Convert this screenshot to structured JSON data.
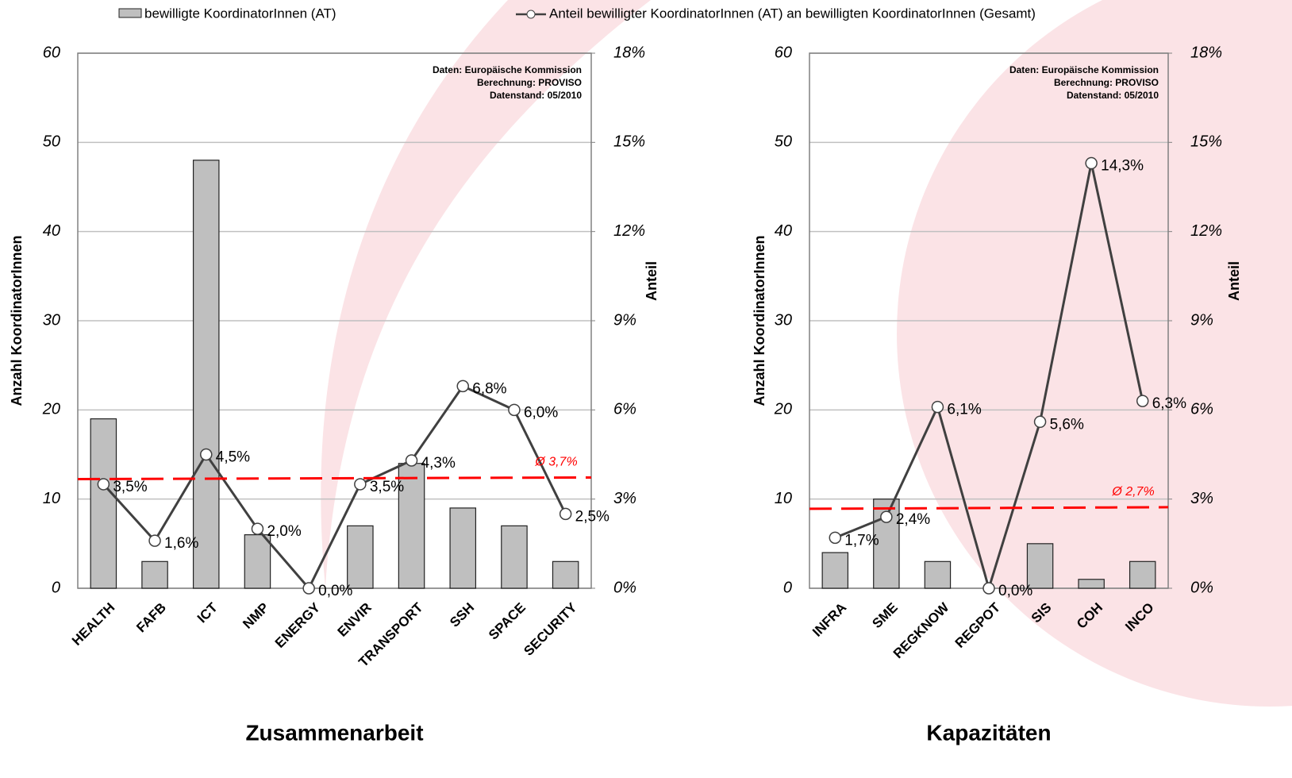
{
  "chart_data": [
    {
      "type": "bar",
      "title": "Zusammenarbeit",
      "y_label": "Anzahl KoordinatorInnen",
      "y2_label": "Anteil",
      "annotations": [
        "Daten: Europäische Kommission",
        "Berechnung: PROVISO",
        "Datenstand: 05/2010"
      ],
      "categories": [
        "HEALTH",
        "FAFB",
        "ICT",
        "NMP",
        "ENERGY",
        "ENVIR",
        "TRANSPORT",
        "SSH",
        "SPACE",
        "SECURITY"
      ],
      "series": [
        {
          "name": "bewilligte KoordinatorInnen (AT)",
          "color": "#bfbfbf",
          "type": "bar",
          "axis": "y",
          "values": [
            19,
            3,
            48,
            6,
            0,
            7,
            14,
            9,
            7,
            3
          ]
        },
        {
          "name": "Anteil bewilligter KoordinatorInnen (AT) an bewilligten KoordinatorInnen (Gesamt)",
          "color": "#404040",
          "type": "line",
          "axis": "y2",
          "values": [
            3.5,
            1.6,
            4.5,
            2.0,
            0.0,
            3.5,
            4.3,
            6.8,
            6.0,
            2.5
          ],
          "value_labels": [
            "3,5%",
            "1,6%",
            "4,5%",
            "2,0%",
            "0,0%",
            "3,5%",
            "4,3%",
            "6,8%",
            "6,0%",
            "2,5%"
          ]
        }
      ],
      "average": {
        "value": 3.7,
        "label": "Ø 3,7%",
        "color": "#ff0000"
      },
      "ylim": [
        0,
        60
      ],
      "yticks": [
        0,
        10,
        20,
        30,
        40,
        50,
        60
      ],
      "y2lim": [
        0,
        18
      ],
      "y2ticks": [
        {
          "value": 0,
          "label": "0%"
        },
        {
          "value": 3,
          "label": "3%"
        },
        {
          "value": 6,
          "label": "6%"
        },
        {
          "value": 9,
          "label": "9%"
        },
        {
          "value": 12,
          "label": "12%"
        },
        {
          "value": 15,
          "label": "15%"
        },
        {
          "value": 18,
          "label": "18%"
        }
      ],
      "grid": true
    },
    {
      "type": "bar",
      "title": "Kapazitäten",
      "y_label": "Anzahl KoordinatorInnen",
      "y2_label": "Anteil",
      "annotations": [
        "Daten: Europäische Kommission",
        "Berechnung: PROVISO",
        "Datenstand: 05/2010"
      ],
      "categories": [
        "INFRA",
        "SME",
        "REGKNOW",
        "REGPOT",
        "SIS",
        "COH",
        "INCO"
      ],
      "series": [
        {
          "color": "#bfbfbf",
          "type": "bar",
          "axis": "y",
          "values": [
            4,
            10,
            3,
            0,
            5,
            1,
            3
          ]
        },
        {
          "color": "#404040",
          "type": "line",
          "axis": "y2",
          "values": [
            1.7,
            2.4,
            6.1,
            0.0,
            5.6,
            14.3,
            6.3
          ],
          "value_labels": [
            "1,7%",
            "2,4%",
            "6,1%",
            "0,0%",
            "5,6%",
            "14,3%",
            "6,3%"
          ]
        }
      ],
      "average": {
        "value": 2.7,
        "label": "Ø 2,7%",
        "color": "#ff0000"
      },
      "ylim": [
        0,
        60
      ],
      "yticks": [
        0,
        10,
        20,
        30,
        40,
        50,
        60
      ],
      "y2lim": [
        0,
        18
      ],
      "y2ticks": [
        {
          "value": 0,
          "label": "0%"
        },
        {
          "value": 3,
          "label": "3%"
        },
        {
          "value": 6,
          "label": "6%"
        },
        {
          "value": 9,
          "label": "9%"
        },
        {
          "value": 12,
          "label": "12%"
        },
        {
          "value": 15,
          "label": "15%"
        },
        {
          "value": 18,
          "label": "18%"
        }
      ],
      "grid": true
    }
  ]
}
